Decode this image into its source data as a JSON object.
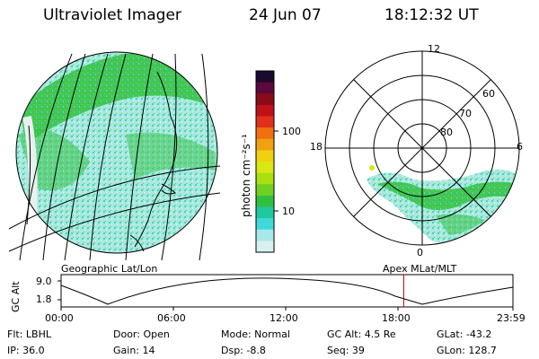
{
  "header": {
    "title": "Ultraviolet Imager",
    "date": "24 Jun 07",
    "time": "18:12:32 UT"
  },
  "colorbar": {
    "unit_label": "photon cm⁻²s⁻¹",
    "ticks": [
      "100",
      "10"
    ],
    "colors": [
      "#1a0a2e",
      "#5a0a3a",
      "#8a0a1a",
      "#c0101a",
      "#e0301a",
      "#f07010",
      "#f0a010",
      "#f0d010",
      "#d8e810",
      "#a8e010",
      "#70d020",
      "#30c040",
      "#20c8a0",
      "#40d8d8",
      "#a8e8e8",
      "#d8f0f0"
    ]
  },
  "polar": {
    "mlt_labels": {
      "top": "12",
      "left": "18",
      "right": "6",
      "bottom": "0"
    },
    "lat_labels": [
      "60",
      "70",
      "80"
    ]
  },
  "timeline": {
    "left_label": "Geographic Lat/Lon",
    "right_label": "Apex MLat/MLT",
    "y_axis_label": "GC Alt",
    "y_ticks": [
      "9.0",
      "1.8"
    ],
    "x_ticks": [
      "00:00",
      "06:00",
      "12:00",
      "18:00",
      "23:59"
    ],
    "current_time_hours": 18.2,
    "marker_color": "#cc0000"
  },
  "footer": {
    "filter": "Flt: LBHL",
    "ip": "IP: 36.0",
    "door": "Door: Open",
    "gain": "Gain: 14",
    "mode": "Mode: Normal",
    "dsp": "Dsp:    -8.8",
    "gc_alt": "GC Alt: 4.5 Re",
    "seq": "Seq: 39",
    "glat": "GLat: -43.2",
    "glon": "GLon: 128.7"
  }
}
